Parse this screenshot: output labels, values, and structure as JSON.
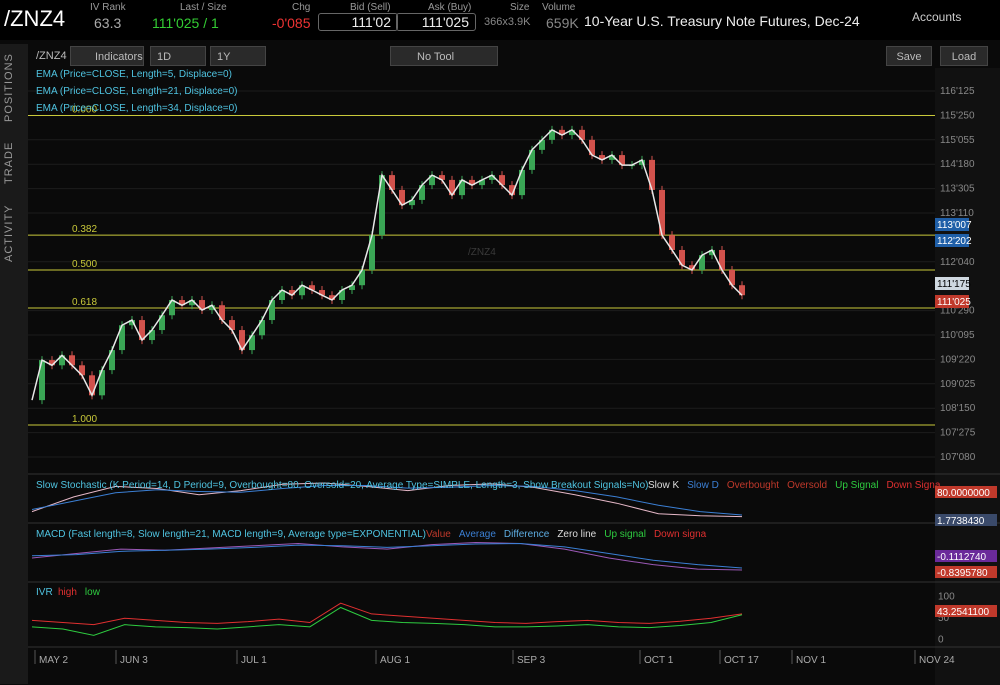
{
  "header": {
    "symbol": "/ZNZ4",
    "iv_rank_label": "IV Rank",
    "iv_rank": "63.3",
    "last_label": "Last / Size",
    "last": "111'025 / 1",
    "chg_label": "Chg",
    "chg": "-0'085",
    "bid_label": "Bid (Sell)",
    "bid": "111'02",
    "ask_label": "Ask (Buy)",
    "ask": "111'025",
    "size_label": "Size",
    "size": "366x3.9K",
    "volume_label": "Volume",
    "volume": "659K",
    "description": "10-Year U.S. Treasury Note Futures, Dec-24",
    "accounts": "Accounts"
  },
  "toolbar": {
    "symbol": "/ZNZ4",
    "indicators": "Indicators",
    "aggregation": "1D",
    "period": "1Y",
    "tool": "No Tool",
    "save": "Save",
    "load": "Load"
  },
  "side_tabs": [
    "POSITIONS",
    "TRADE",
    "ACTIVITY"
  ],
  "price_chart": {
    "watermark": "/ZNZ4",
    "studies": [
      "EMA (Price=CLOSE, Length=5, Displace=0)",
      "EMA (Price=CLOSE, Length=21, Displace=0)",
      "EMA (Price=CLOSE, Length=34, Displace=0)"
    ],
    "up_color": "#3aa655",
    "down_color": "#d2524c",
    "line_color": "#e8e8e8",
    "closes": [
      108.67,
      109.67,
      109.54,
      109.79,
      109.54,
      109.29,
      108.79,
      109.42,
      109.92,
      110.54,
      110.67,
      110.17,
      110.42,
      110.79,
      111.17,
      111.04,
      111.17,
      110.92,
      111.04,
      110.67,
      110.42,
      109.92,
      110.29,
      110.67,
      111.17,
      111.42,
      111.29,
      111.54,
      111.42,
      111.29,
      111.17,
      111.42,
      111.54,
      111.92,
      112.79,
      114.29,
      113.92,
      113.54,
      113.67,
      114.04,
      114.29,
      114.17,
      113.79,
      114.17,
      114.04,
      114.17,
      114.29,
      114.04,
      113.79,
      114.42,
      114.92,
      115.17,
      115.42,
      115.29,
      115.42,
      115.17,
      114.79,
      114.67,
      114.79,
      114.54,
      114.54,
      114.67,
      113.92,
      112.79,
      112.42,
      112.04,
      111.92,
      112.29,
      112.42,
      111.92,
      111.54,
      111.29
    ],
    "ylim": [
      106.925,
      116.915
    ],
    "yticks": [
      {
        "value": 116.390625,
        "label": "116'125"
      },
      {
        "value": 115.78125,
        "label": "115'250"
      },
      {
        "value": 115.171875,
        "label": "115'055"
      },
      {
        "value": 114.5625,
        "label": "114'180"
      },
      {
        "value": 113.953125,
        "label": "113'305"
      },
      {
        "value": 113.34375,
        "label": "113'110"
      },
      {
        "value": 112.125,
        "label": "112'040"
      },
      {
        "value": 110.90625,
        "label": "110'290"
      },
      {
        "value": 110.296875,
        "label": "110'095"
      },
      {
        "value": 109.6875,
        "label": "109'220"
      },
      {
        "value": 109.078125,
        "label": "109'025"
      },
      {
        "value": 108.46875,
        "label": "108'150"
      },
      {
        "value": 107.859375,
        "label": "107'275"
      },
      {
        "value": 107.25,
        "label": "107'080"
      }
    ],
    "fib": {
      "color": "#c9c93a",
      "levels": [
        {
          "label": "0.000",
          "value": 115.78
        },
        {
          "label": "0.382",
          "value": 112.79
        },
        {
          "label": "0.500",
          "value": 111.92
        },
        {
          "label": "0.618",
          "value": 110.97
        },
        {
          "label": "1.000",
          "value": 108.05
        }
      ]
    },
    "price_boxes": [
      {
        "label": "113'007",
        "color": "#1f5fa8"
      },
      {
        "label": "112'202",
        "color": "#1f5fa8"
      },
      {
        "label": "111'175",
        "color": "#cfd8e0"
      },
      {
        "label": "111'025",
        "color": "#c0392b"
      }
    ]
  },
  "stochastic": {
    "title": "Slow Stochastic (K Period=14, D Period=9, Overbought=80, Oversold=20, Average Type=SIMPLE, Length=3, Show Breakout Signals=No)",
    "legend": [
      {
        "name": "Slow K",
        "color": "#dddddd"
      },
      {
        "name": "Slow D",
        "color": "#3b7fd4"
      },
      {
        "name": "Overbought",
        "color": "#c0392b"
      },
      {
        "name": "Oversold",
        "color": "#c0392b"
      },
      {
        "name": "Up Signal",
        "color": "#2ecc40"
      },
      {
        "name": "Down Signa",
        "color": "#e03030"
      }
    ],
    "ylim": [
      0,
      100
    ],
    "series": [
      {
        "color": "#e6b8c8",
        "values": [
          20,
          55,
          80,
          75,
          60,
          70,
          85,
          88,
          80,
          70,
          82,
          86,
          78,
          60,
          40,
          15,
          10,
          8
        ]
      },
      {
        "color": "#3b7fd4",
        "values": [
          25,
          45,
          65,
          72,
          68,
          66,
          75,
          82,
          82,
          76,
          78,
          82,
          80,
          70,
          55,
          35,
          20,
          12
        ]
      }
    ],
    "axis_labels": [
      {
        "label": "80.0000000",
        "color": "#c0392b"
      },
      {
        "label": "1.7738430",
        "color": "#3a4a6a"
      }
    ]
  },
  "macd": {
    "title": "MACD (Fast length=8, Slow length=21, MACD length=9, Average type=EXPONENTIAL)",
    "legend": [
      {
        "name": "Value",
        "color": "#c0392b"
      },
      {
        "name": "Average",
        "color": "#3b7fd4"
      },
      {
        "name": "Difference",
        "color": "#5dade2"
      },
      {
        "name": "Zero line",
        "color": "#dddddd"
      },
      {
        "name": "Up signal",
        "color": "#2ecc40"
      },
      {
        "name": "Down signa",
        "color": "#e03030"
      }
    ],
    "ylim": [
      -1.2,
      0.6
    ],
    "series": [
      {
        "color": "#9b59b6",
        "values": [
          -0.3,
          -0.1,
          0.1,
          0.05,
          0.15,
          0.25,
          0.35,
          0.2,
          0.1,
          0.3,
          0.4,
          0.35,
          0.1,
          -0.3,
          -0.6,
          -0.8,
          -0.84
        ]
      },
      {
        "color": "#3b7fd4",
        "values": [
          -0.2,
          -0.15,
          0.0,
          0.05,
          0.1,
          0.18,
          0.28,
          0.25,
          0.18,
          0.25,
          0.33,
          0.35,
          0.2,
          -0.1,
          -0.4,
          -0.6,
          -0.75
        ]
      }
    ],
    "axis_labels": [
      {
        "label": "-0.1112740",
        "color": "#6a2a9a"
      },
      {
        "label": "-0.8395780",
        "color": "#c0392b"
      }
    ]
  },
  "ivr": {
    "title": "IVR",
    "legend": [
      {
        "name": "high",
        "color": "#e03030"
      },
      {
        "name": "low",
        "color": "#2ecc40"
      }
    ],
    "ylim": [
      -10,
      125
    ],
    "yticks": [
      100,
      50,
      0
    ],
    "series": [
      {
        "color": "#e03030",
        "values": [
          45,
          40,
          35,
          50,
          45,
          40,
          38,
          42,
          48,
          40,
          85,
          60,
          55,
          50,
          45,
          40,
          38,
          42,
          45,
          40,
          38,
          43,
          50,
          60
        ]
      },
      {
        "color": "#2ecc40",
        "values": [
          30,
          25,
          10,
          35,
          30,
          28,
          25,
          30,
          35,
          30,
          75,
          45,
          40,
          38,
          35,
          30,
          30,
          32,
          35,
          30,
          28,
          33,
          40,
          58
        ]
      }
    ],
    "axis_label": "43.2541100"
  },
  "x_axis": [
    "MAY 2",
    "JUN 3",
    "JUL 1",
    "AUG 1",
    "SEP 3",
    "OCT 1",
    "OCT 17",
    "NOV 1",
    "NOV 24"
  ]
}
